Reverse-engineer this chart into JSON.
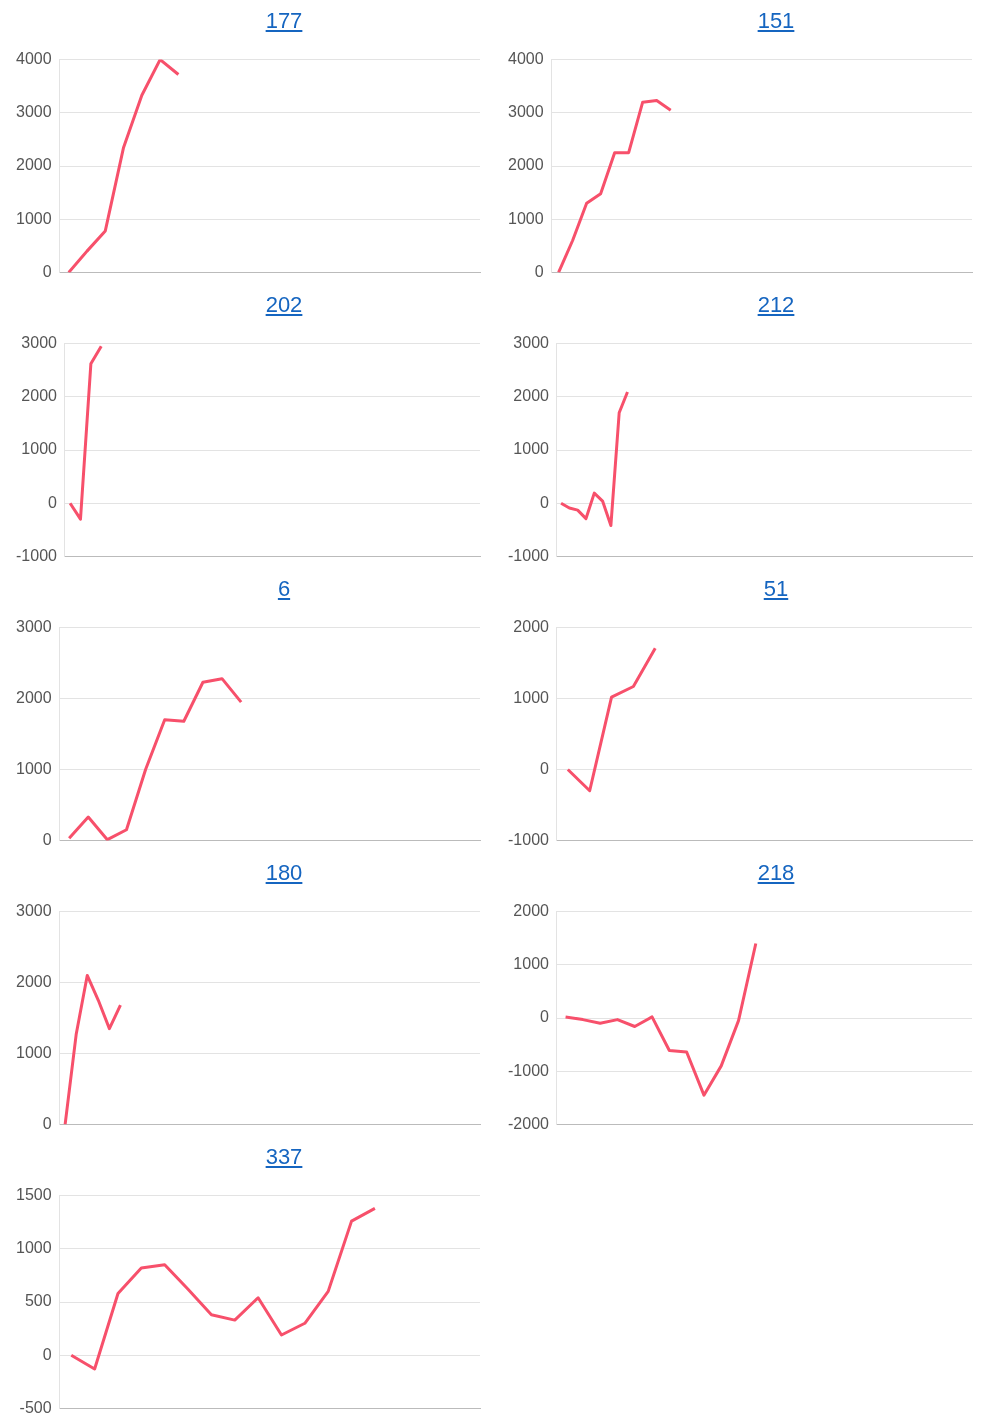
{
  "chart_data": [
    {
      "type": "line",
      "title": "177",
      "categories": [
        null,
        null,
        null,
        null,
        null,
        null,
        null,
        null,
        null,
        null,
        null,
        null,
        null,
        null,
        null,
        null,
        null,
        null,
        null,
        null,
        null,
        null,
        null
      ],
      "series": [
        {
          "color": "#f7506b",
          "values": [
            0,
            400,
            780,
            2350,
            3330,
            4000,
            3720,
            null,
            null,
            null,
            null,
            null,
            null,
            null,
            null,
            null,
            null,
            null,
            null,
            null,
            null,
            null,
            null
          ]
        }
      ],
      "ylim": [
        0,
        4000
      ],
      "yticks": [
        0,
        1000,
        2000,
        3000,
        4000
      ],
      "grid": "y",
      "tick_labels": "y",
      "marker": "none",
      "legend": false
    },
    {
      "type": "line",
      "title": "151",
      "categories": [
        null,
        null,
        null,
        null,
        null,
        null,
        null,
        null,
        null,
        null,
        null,
        null,
        null,
        null,
        null,
        null,
        null,
        null,
        null,
        null,
        null,
        null,
        null,
        null,
        null,
        null,
        null,
        null,
        null,
        null
      ],
      "series": [
        {
          "color": "#f7506b",
          "values": [
            0,
            600,
            1300,
            1480,
            2250,
            2250,
            3200,
            3230,
            3050,
            null,
            null,
            null,
            null,
            null,
            null,
            null,
            null,
            null,
            null,
            null,
            null,
            null,
            null,
            null,
            null,
            null,
            null,
            null,
            null,
            null
          ]
        }
      ],
      "ylim": [
        0,
        4000
      ],
      "yticks": [
        0,
        1000,
        2000,
        3000,
        4000
      ],
      "grid": "y",
      "tick_labels": "y",
      "marker": "none",
      "legend": false
    },
    {
      "type": "line",
      "title": "202",
      "categories": [
        null,
        null,
        null,
        null,
        null,
        null,
        null,
        null,
        null,
        null,
        null,
        null,
        null,
        null,
        null,
        null,
        null,
        null,
        null,
        null,
        null,
        null,
        null,
        null,
        null,
        null,
        null,
        null,
        null,
        null,
        null,
        null,
        null,
        null,
        null,
        null,
        null,
        null,
        null,
        null
      ],
      "series": [
        {
          "color": "#f7506b",
          "values": [
            0,
            -300,
            2620,
            2950,
            null,
            null,
            null,
            null,
            null,
            null,
            null,
            null,
            null,
            null,
            null,
            null,
            null,
            null,
            null,
            null,
            null,
            null,
            null,
            null,
            null,
            null,
            null,
            null,
            null,
            null,
            null,
            null,
            null,
            null,
            null,
            null,
            null,
            null,
            null,
            null
          ]
        }
      ],
      "ylim": [
        -1000,
        3000
      ],
      "yticks": [
        -1000,
        0,
        1000,
        2000,
        3000
      ],
      "grid": "y",
      "tick_labels": "y",
      "marker": "none",
      "legend": false
    },
    {
      "type": "line",
      "title": "212",
      "categories": [
        null,
        null,
        null,
        null,
        null,
        null,
        null,
        null,
        null,
        null,
        null,
        null,
        null,
        null,
        null,
        null,
        null,
        null,
        null,
        null,
        null,
        null,
        null,
        null,
        null,
        null,
        null,
        null,
        null,
        null,
        null,
        null,
        null,
        null,
        null,
        null,
        null,
        null,
        null,
        null,
        null,
        null,
        null,
        null,
        null,
        null,
        null,
        null,
        null,
        null
      ],
      "series": [
        {
          "color": "#f7506b",
          "values": [
            0,
            -90,
            -130,
            -290,
            190,
            40,
            -420,
            1700,
            2090,
            null,
            null,
            null,
            null,
            null,
            null,
            null,
            null,
            null,
            null,
            null,
            null,
            null,
            null,
            null,
            null,
            null,
            null,
            null,
            null,
            null,
            null,
            null,
            null,
            null,
            null,
            null,
            null,
            null,
            null,
            null,
            null,
            null,
            null,
            null,
            null,
            null,
            null,
            null,
            null,
            null
          ]
        }
      ],
      "ylim": [
        -1000,
        3000
      ],
      "yticks": [
        -1000,
        0,
        1000,
        2000,
        3000
      ],
      "grid": "y",
      "tick_labels": "y",
      "marker": "none",
      "legend": false
    },
    {
      "type": "line",
      "title": "6",
      "categories": [
        null,
        null,
        null,
        null,
        null,
        null,
        null,
        null,
        null,
        null,
        null,
        null,
        null,
        null,
        null,
        null,
        null,
        null,
        null,
        null,
        null,
        null
      ],
      "series": [
        {
          "color": "#f7506b",
          "values": [
            30,
            330,
            10,
            150,
            1000,
            1700,
            1680,
            2230,
            2280,
            1950,
            null,
            null,
            null,
            null,
            null,
            null,
            null,
            null,
            null,
            null,
            null,
            null
          ]
        }
      ],
      "ylim": [
        0,
        3000
      ],
      "yticks": [
        0,
        1000,
        2000,
        3000
      ],
      "grid": "y",
      "tick_labels": "y",
      "marker": "none",
      "legend": false
    },
    {
      "type": "line",
      "title": "51",
      "categories": [
        null,
        null,
        null,
        null,
        null,
        null,
        null,
        null,
        null,
        null,
        null,
        null,
        null,
        null,
        null,
        null,
        null,
        null,
        null
      ],
      "series": [
        {
          "color": "#f7506b",
          "values": [
            0,
            -300,
            1020,
            1170,
            1710,
            null,
            null,
            null,
            null,
            null,
            null,
            null,
            null,
            null,
            null,
            null,
            null,
            null,
            null
          ]
        }
      ],
      "ylim": [
        -1000,
        2000
      ],
      "yticks": [
        -1000,
        0,
        1000,
        2000
      ],
      "grid": "y",
      "tick_labels": "y",
      "marker": "none",
      "legend": false
    },
    {
      "type": "line",
      "title": "180",
      "categories": [
        null,
        null,
        null,
        null,
        null,
        null,
        null,
        null,
        null,
        null,
        null,
        null,
        null,
        null,
        null,
        null,
        null,
        null,
        null,
        null,
        null,
        null,
        null,
        null,
        null,
        null,
        null,
        null,
        null,
        null,
        null,
        null,
        null,
        null,
        null,
        null,
        null,
        null
      ],
      "series": [
        {
          "color": "#f7506b",
          "values": [
            0,
            1270,
            2100,
            1750,
            1350,
            1680,
            null,
            null,
            null,
            null,
            null,
            null,
            null,
            null,
            null,
            null,
            null,
            null,
            null,
            null,
            null,
            null,
            null,
            null,
            null,
            null,
            null,
            null,
            null,
            null,
            null,
            null,
            null,
            null,
            null,
            null,
            null,
            null
          ]
        }
      ],
      "ylim": [
        0,
        3000
      ],
      "yticks": [
        0,
        1000,
        2000,
        3000
      ],
      "grid": "y",
      "tick_labels": "y",
      "marker": "none",
      "legend": false
    },
    {
      "type": "line",
      "title": "218",
      "categories": [
        null,
        null,
        null,
        null,
        null,
        null,
        null,
        null,
        null,
        null,
        null,
        null,
        null,
        null,
        null,
        null,
        null,
        null,
        null,
        null,
        null,
        null,
        null,
        null
      ],
      "series": [
        {
          "color": "#f7506b",
          "values": [
            20,
            -30,
            -100,
            -30,
            -160,
            20,
            -610,
            -640,
            -1450,
            -900,
            -50,
            1400,
            null,
            null,
            null,
            null,
            null,
            null,
            null,
            null,
            null,
            null,
            null,
            null
          ]
        }
      ],
      "ylim": [
        -2000,
        2000
      ],
      "yticks": [
        -2000,
        -1000,
        0,
        1000,
        2000
      ],
      "grid": "y",
      "tick_labels": "y",
      "marker": "none",
      "legend": false
    },
    {
      "type": "line",
      "title": "337",
      "categories": [
        null,
        null,
        null,
        null,
        null,
        null,
        null,
        null,
        null,
        null,
        null,
        null,
        null,
        null,
        null,
        null,
        null,
        null
      ],
      "series": [
        {
          "color": "#f7506b",
          "values": [
            0,
            -130,
            580,
            820,
            850,
            620,
            380,
            330,
            540,
            190,
            300,
            600,
            1260,
            1380,
            null,
            null,
            null,
            null
          ]
        }
      ],
      "ylim": [
        -500,
        1500
      ],
      "yticks": [
        -500,
        0,
        500,
        1000,
        1500
      ],
      "grid": "y",
      "tick_labels": "y",
      "marker": "none",
      "legend": false
    }
  ]
}
